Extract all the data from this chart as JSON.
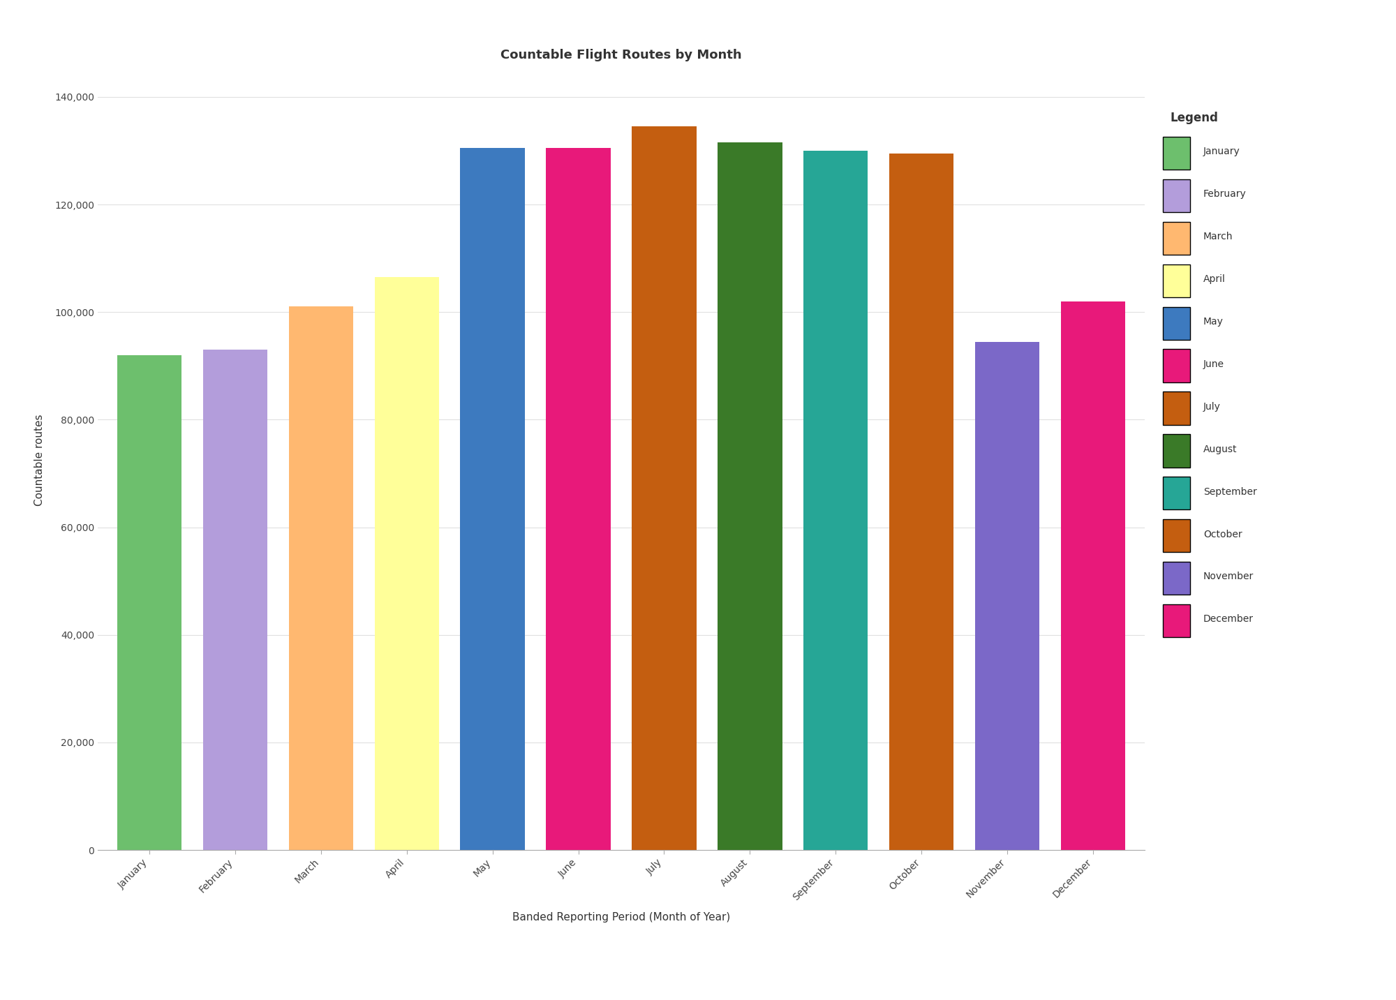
{
  "title": "Countable Flight Routes by Month",
  "xlabel": "Banded Reporting Period (Month of Year)",
  "ylabel": "Countable routes",
  "categories": [
    "January",
    "February",
    "March",
    "April",
    "May",
    "June",
    "July",
    "August",
    "September",
    "October",
    "November",
    "December"
  ],
  "values": [
    92000,
    93000,
    101000,
    106500,
    130500,
    130500,
    134500,
    131500,
    130000,
    129500,
    94500,
    102000
  ],
  "colors": [
    "#6dbf6d",
    "#b39ddb",
    "#ffb870",
    "#ffff99",
    "#3d7abf",
    "#e8197a",
    "#c45e10",
    "#3a7a28",
    "#26a696",
    "#c45e10",
    "#7b68c8",
    "#e8197a"
  ],
  "legend_colors": [
    "#6dbf6d",
    "#b39ddb",
    "#ffb870",
    "#ffff99",
    "#3d7abf",
    "#e8197a",
    "#c45e10",
    "#3a7a28",
    "#26a696",
    "#c45e10",
    "#7b68c8",
    "#e8197a"
  ],
  "ylim": [
    0,
    145000
  ],
  "yticks": [
    0,
    20000,
    40000,
    60000,
    80000,
    100000,
    120000,
    140000
  ],
  "background_color": "#ffffff",
  "grid_color": "#e0e0e0",
  "title_fontsize": 13,
  "label_fontsize": 11,
  "tick_fontsize": 10,
  "legend_title": "Legend",
  "bar_width": 0.75
}
